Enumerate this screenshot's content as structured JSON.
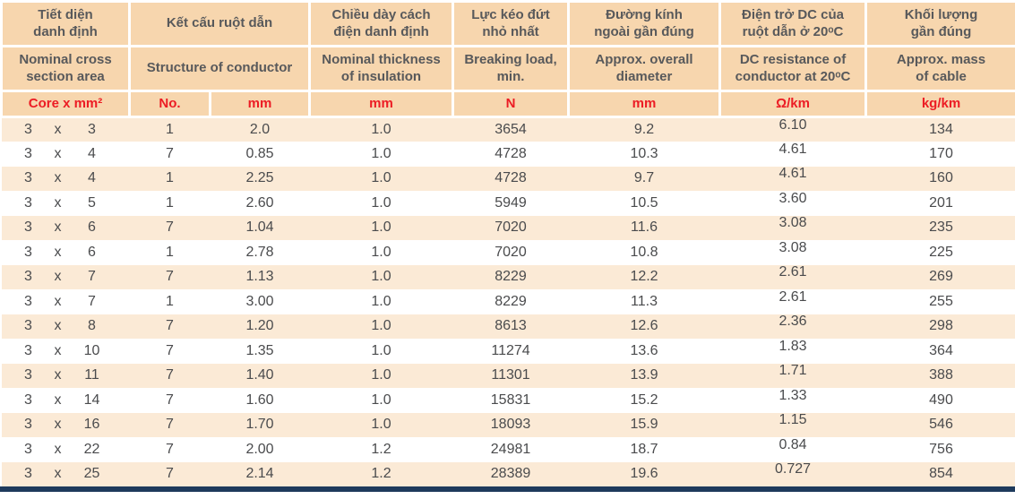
{
  "colors": {
    "header_bg": "#f7d6ae",
    "stripe_bg": "#fbead6",
    "row_bg": "#ffffff",
    "red": "#ec1c24",
    "header_text": "#58595b",
    "data_text": "#4a4b4d",
    "bottom_bar": "#1e3a5c"
  },
  "header": {
    "vi": [
      "Tiết diện\ndanh định",
      "Kết cấu ruột dẫn",
      "Chiều dày cách\nđiện danh định",
      "Lực kéo đứt\nnhỏ nhất",
      "Đường kính\nngoài gần đúng",
      "Điện trở DC của\nruột dẫn ở 20ᵒC",
      "Khối lượng\ngần đúng"
    ],
    "en": [
      "Nominal cross\nsection area",
      "Structure of conductor",
      "Nominal thickness\nof insulation",
      "Breaking load,\nmin.",
      "Approx. overall\ndiameter",
      "DC resistance of\nconductor at 20ᵒC",
      "Approx. mass\nof cable"
    ],
    "units": [
      "Core x mm²",
      "No.",
      "mm",
      "mm",
      "N",
      "mm",
      "Ω/km",
      "kg/km"
    ]
  },
  "rows": [
    {
      "core": [
        "3",
        "x",
        "3"
      ],
      "no": "1",
      "strand_mm": "2.0",
      "insulation_mm": "1.0",
      "breaking_load_n": "3654",
      "overall_diameter_mm": "9.2",
      "dc_resistance_ohm_km": "6.10",
      "mass_kg_km": "134"
    },
    {
      "core": [
        "3",
        "x",
        "4"
      ],
      "no": "7",
      "strand_mm": "0.85",
      "insulation_mm": "1.0",
      "breaking_load_n": "4728",
      "overall_diameter_mm": "10.3",
      "dc_resistance_ohm_km": "4.61",
      "mass_kg_km": "170"
    },
    {
      "core": [
        "3",
        "x",
        "4"
      ],
      "no": "1",
      "strand_mm": "2.25",
      "insulation_mm": "1.0",
      "breaking_load_n": "4728",
      "overall_diameter_mm": "9.7",
      "dc_resistance_ohm_km": "4.61",
      "mass_kg_km": "160"
    },
    {
      "core": [
        "3",
        "x",
        "5"
      ],
      "no": "1",
      "strand_mm": "2.60",
      "insulation_mm": "1.0",
      "breaking_load_n": "5949",
      "overall_diameter_mm": "10.5",
      "dc_resistance_ohm_km": "3.60",
      "mass_kg_km": "201"
    },
    {
      "core": [
        "3",
        "x",
        "6"
      ],
      "no": "7",
      "strand_mm": "1.04",
      "insulation_mm": "1.0",
      "breaking_load_n": "7020",
      "overall_diameter_mm": "11.6",
      "dc_resistance_ohm_km": "3.08",
      "mass_kg_km": "235"
    },
    {
      "core": [
        "3",
        "x",
        "6"
      ],
      "no": "1",
      "strand_mm": "2.78",
      "insulation_mm": "1.0",
      "breaking_load_n": "7020",
      "overall_diameter_mm": "10.8",
      "dc_resistance_ohm_km": "3.08",
      "mass_kg_km": "225"
    },
    {
      "core": [
        "3",
        "x",
        "7"
      ],
      "no": "7",
      "strand_mm": "1.13",
      "insulation_mm": "1.0",
      "breaking_load_n": "8229",
      "overall_diameter_mm": "12.2",
      "dc_resistance_ohm_km": "2.61",
      "mass_kg_km": "269"
    },
    {
      "core": [
        "3",
        "x",
        "7"
      ],
      "no": "1",
      "strand_mm": "3.00",
      "insulation_mm": "1.0",
      "breaking_load_n": "8229",
      "overall_diameter_mm": "11.3",
      "dc_resistance_ohm_km": "2.61",
      "mass_kg_km": "255"
    },
    {
      "core": [
        "3",
        "x",
        "8"
      ],
      "no": "7",
      "strand_mm": "1.20",
      "insulation_mm": "1.0",
      "breaking_load_n": "8613",
      "overall_diameter_mm": "12.6",
      "dc_resistance_ohm_km": "2.36",
      "mass_kg_km": "298"
    },
    {
      "core": [
        "3",
        "x",
        "10"
      ],
      "no": "7",
      "strand_mm": "1.35",
      "insulation_mm": "1.0",
      "breaking_load_n": "11274",
      "overall_diameter_mm": "13.6",
      "dc_resistance_ohm_km": "1.83",
      "mass_kg_km": "364"
    },
    {
      "core": [
        "3",
        "x",
        "11"
      ],
      "no": "7",
      "strand_mm": "1.40",
      "insulation_mm": "1.0",
      "breaking_load_n": "11301",
      "overall_diameter_mm": "13.9",
      "dc_resistance_ohm_km": "1.71",
      "mass_kg_km": "388"
    },
    {
      "core": [
        "3",
        "x",
        "14"
      ],
      "no": "7",
      "strand_mm": "1.60",
      "insulation_mm": "1.0",
      "breaking_load_n": "15831",
      "overall_diameter_mm": "15.2",
      "dc_resistance_ohm_km": "1.33",
      "mass_kg_km": "490"
    },
    {
      "core": [
        "3",
        "x",
        "16"
      ],
      "no": "7",
      "strand_mm": "1.70",
      "insulation_mm": "1.0",
      "breaking_load_n": "18093",
      "overall_diameter_mm": "15.9",
      "dc_resistance_ohm_km": "1.15",
      "mass_kg_km": "546"
    },
    {
      "core": [
        "3",
        "x",
        "22"
      ],
      "no": "7",
      "strand_mm": "2.00",
      "insulation_mm": "1.2",
      "breaking_load_n": "24981",
      "overall_diameter_mm": "18.7",
      "dc_resistance_ohm_km": "0.84",
      "mass_kg_km": "756"
    },
    {
      "core": [
        "3",
        "x",
        "25"
      ],
      "no": "7",
      "strand_mm": "2.14",
      "insulation_mm": "1.2",
      "breaking_load_n": "28389",
      "overall_diameter_mm": "19.6",
      "dc_resistance_ohm_km": "0.727",
      "mass_kg_km": "854"
    }
  ]
}
